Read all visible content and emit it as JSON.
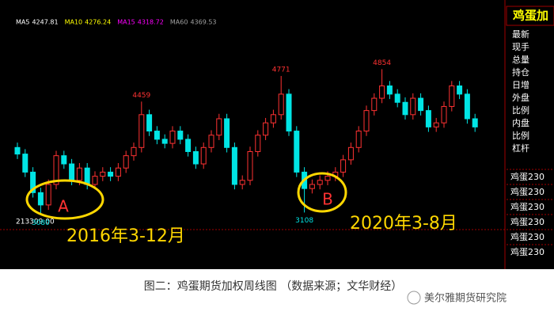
{
  "chart_data": {
    "type": "candlestick",
    "ma_legend": [
      {
        "name": "MA5",
        "value": 4247.81,
        "color": "#ffffff"
      },
      {
        "name": "MA10",
        "value": 4276.24,
        "color": "#ffff00"
      },
      {
        "name": "MA15",
        "value": 4318.72,
        "color": "#ff00ff"
      },
      {
        "name": "MA60",
        "value": 4369.53,
        "color": "#a0a0a0"
      }
    ],
    "up_color": "#ff3232",
    "down_color": "#00e5e5",
    "ylim": [
      2900,
      5600
    ],
    "open": [
      3900,
      3820,
      3600,
      3350,
      3200,
      3450,
      3800,
      3700,
      3500,
      3650,
      3450,
      3550,
      3600,
      3550,
      3650,
      3800,
      3900,
      4300,
      4100,
      4000,
      3950,
      4100,
      4000,
      3850,
      3700,
      3900,
      4050,
      4250,
      3900,
      3450,
      3500,
      3850,
      4050,
      4200,
      4300,
      4550,
      4100,
      3600,
      3400,
      3450,
      3500,
      3550,
      3600,
      3750,
      3900,
      4100,
      4350,
      4500,
      4650,
      4550,
      4450,
      4300,
      4500,
      4350,
      4150,
      4200,
      4400,
      4650,
      4550,
      4250
    ],
    "high": [
      3960,
      3880,
      3660,
      3410,
      3510,
      3860,
      3860,
      3760,
      3710,
      3710,
      3610,
      3660,
      3660,
      3710,
      3860,
      3960,
      4459,
      4360,
      4160,
      4060,
      4160,
      4160,
      4060,
      3910,
      3960,
      4110,
      4310,
      4310,
      3960,
      3560,
      3910,
      4110,
      4260,
      4360,
      4771,
      4610,
      4160,
      3660,
      3510,
      3560,
      3610,
      3660,
      3810,
      3960,
      4160,
      4410,
      4560,
      4854,
      4710,
      4610,
      4510,
      4560,
      4560,
      4410,
      4260,
      4460,
      4710,
      4710,
      4610,
      4310
    ],
    "low": [
      3760,
      3540,
      3290,
      3080,
      3140,
      3390,
      3640,
      3440,
      3440,
      3390,
      3390,
      3490,
      3490,
      3490,
      3590,
      3740,
      3840,
      4040,
      3940,
      3890,
      3890,
      3940,
      3790,
      3640,
      3640,
      3840,
      3990,
      3840,
      3390,
      3390,
      3440,
      3790,
      3990,
      4140,
      4240,
      4040,
      3540,
      3108,
      3340,
      3390,
      3440,
      3490,
      3540,
      3690,
      3840,
      4040,
      4290,
      4440,
      4490,
      4390,
      4240,
      4240,
      4290,
      4090,
      4090,
      4140,
      4340,
      4490,
      4190,
      4090
    ],
    "close": [
      3820,
      3600,
      3350,
      3200,
      3450,
      3800,
      3700,
      3500,
      3650,
      3450,
      3550,
      3600,
      3550,
      3650,
      3800,
      3900,
      4300,
      4100,
      4000,
      3950,
      4100,
      4000,
      3850,
      3700,
      3900,
      4050,
      4250,
      3900,
      3450,
      3500,
      3850,
      4050,
      4200,
      4300,
      4550,
      4100,
      3600,
      3400,
      3450,
      3500,
      3550,
      3600,
      3750,
      3900,
      4100,
      4350,
      4500,
      4650,
      4550,
      4450,
      4300,
      4500,
      4350,
      4150,
      4200,
      4400,
      4650,
      4550,
      4250,
      4150
    ],
    "volume_label": "213309.00",
    "annotations": [
      "A",
      "B",
      "2016年3-12月",
      "2020年3-8月"
    ]
  },
  "side_panel": {
    "title": "鸡蛋加",
    "fields": [
      "最新",
      "现手",
      "总量",
      "持仓",
      "日增",
      "外盘",
      "比例",
      "内盘",
      "比例",
      "杠杆"
    ],
    "contracts": [
      "鸡蛋230",
      "鸡蛋230",
      "鸡蛋230",
      "鸡蛋230",
      "鸡蛋230",
      "鸡蛋230"
    ]
  },
  "caption": "图二：鸡蛋期货加权周线图 （数据来源；文华财经）",
  "watermark": "美尔雅期货研究院"
}
